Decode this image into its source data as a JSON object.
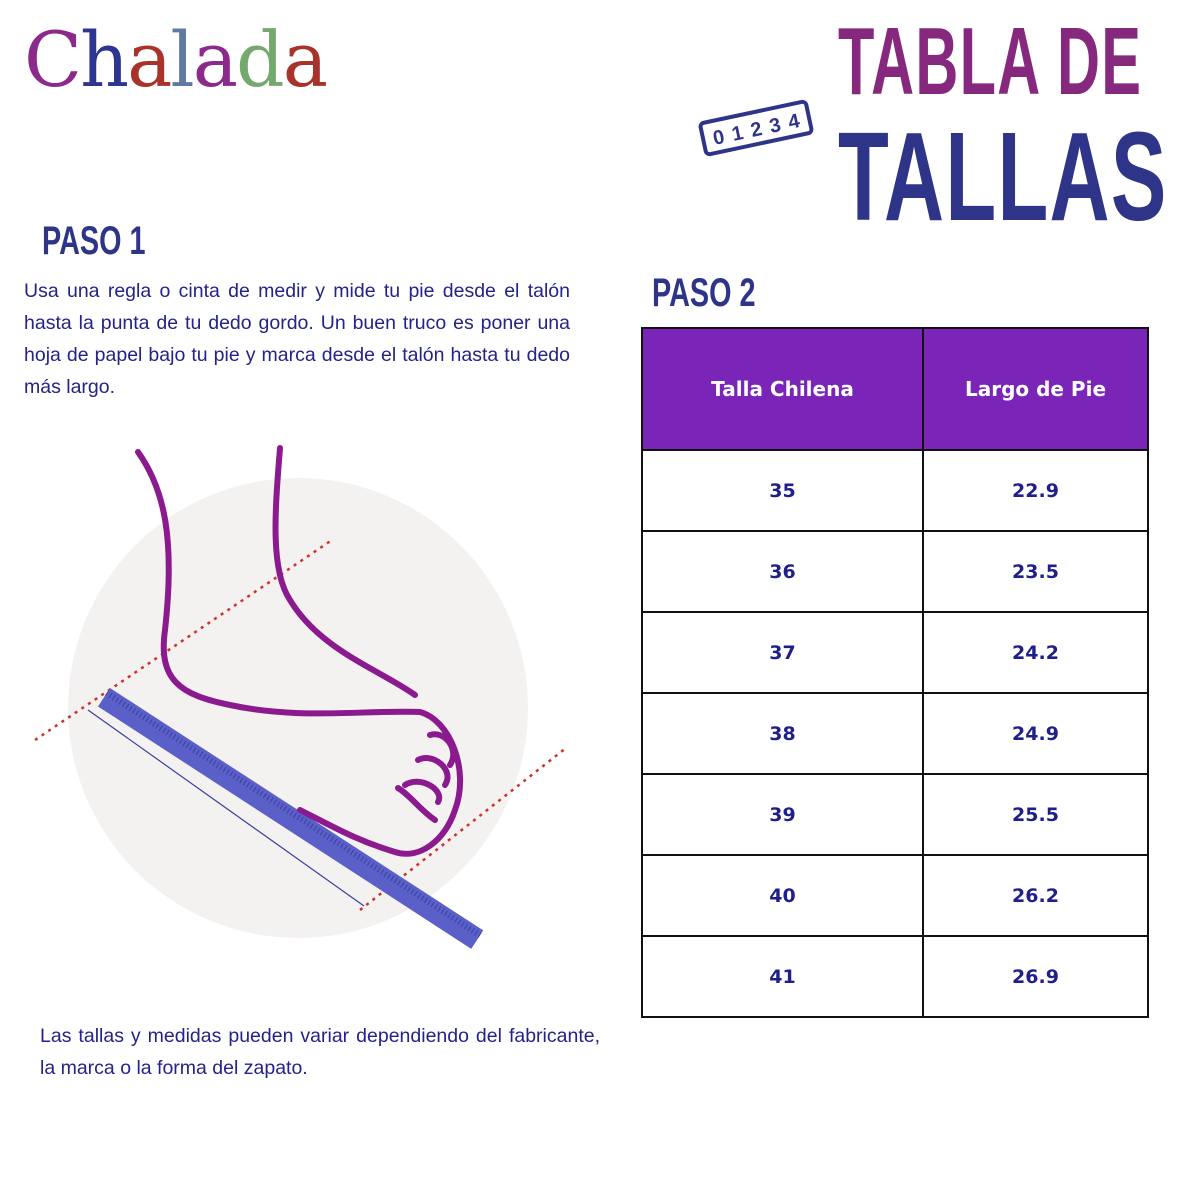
{
  "logo": {
    "text": "Chalada",
    "letters": [
      {
        "ch": "C",
        "color": "#8b2a8a"
      },
      {
        "ch": "h",
        "color": "#2d3590"
      },
      {
        "ch": "a",
        "color": "#a8332b"
      },
      {
        "ch": "l",
        "color": "#5f7aa0"
      },
      {
        "ch": "a",
        "color": "#8b2a8a"
      },
      {
        "ch": "d",
        "color": "#74a96e"
      },
      {
        "ch": "a",
        "color": "#a8332b"
      }
    ]
  },
  "header": {
    "title_line1": "TABLA DE",
    "title_line2": "TALLAS",
    "ruler_numbers": [
      "0",
      "1",
      "2",
      "3",
      "4"
    ]
  },
  "step1": {
    "heading": "PASO 1",
    "text": "Usa una regla o cinta de medir y mide tu pie desde el talón hasta la punta de tu dedo gordo. Un buen truco es poner una hoja de papel bajo tu pie y marca desde el talón hasta tu dedo más largo."
  },
  "note": "Las tallas y medidas pueden variar dependiendo del fabricante, la marca o la forma del zapato.",
  "step2": {
    "heading": "PASO 2",
    "columns": [
      "Talla Chilena",
      "Largo de Pie"
    ],
    "rows": [
      [
        "35",
        "22.9"
      ],
      [
        "36",
        "23.5"
      ],
      [
        "37",
        "24.2"
      ],
      [
        "38",
        "24.9"
      ],
      [
        "39",
        "25.5"
      ],
      [
        "40",
        "26.2"
      ],
      [
        "41",
        "26.9"
      ]
    ]
  },
  "colors": {
    "header_purple": "#7a25b8",
    "text_navy": "#23238a",
    "foot": "#8b1a8e",
    "ruler": "#5a60c8",
    "guide": "#d0302a"
  }
}
